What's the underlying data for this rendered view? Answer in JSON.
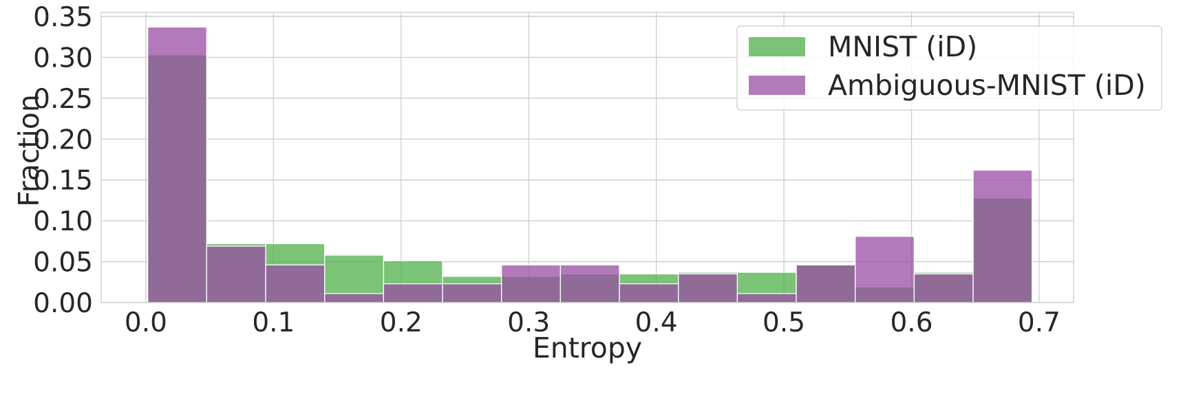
{
  "chart_data": {
    "type": "bar",
    "subtype": "overlapping-histogram",
    "title": "",
    "xlabel": "Entropy",
    "ylabel": "Fraction",
    "xlim": [
      -0.035,
      0.727
    ],
    "ylim": [
      0,
      0.355
    ],
    "grid": true,
    "legend_position": "top-right",
    "bin_edges": [
      0.0015,
      0.0477,
      0.0939,
      0.1401,
      0.1863,
      0.2325,
      0.2787,
      0.3249,
      0.3711,
      0.4173,
      0.4635,
      0.5097,
      0.5559,
      0.6021,
      0.6483,
      0.6945
    ],
    "series": [
      {
        "name": "MNIST (iD)",
        "color": "#4daf4a",
        "values": [
          0.303,
          0.072,
          0.072,
          0.058,
          0.051,
          0.032,
          0.032,
          0.035,
          0.035,
          0.037,
          0.037,
          0.046,
          0.019,
          0.037,
          0.128
        ]
      },
      {
        "name": "Ambiguous-MNIST (iD)",
        "color": "#984ea3",
        "values": [
          0.337,
          0.069,
          0.046,
          0.011,
          0.023,
          0.023,
          0.046,
          0.046,
          0.023,
          0.035,
          0.011,
          0.046,
          0.081,
          0.035,
          0.162
        ]
      }
    ],
    "x_ticks": [
      {
        "value": 0.0,
        "label": "0.0"
      },
      {
        "value": 0.1,
        "label": "0.1"
      },
      {
        "value": 0.2,
        "label": "0.2"
      },
      {
        "value": 0.3,
        "label": "0.3"
      },
      {
        "value": 0.4,
        "label": "0.4"
      },
      {
        "value": 0.5,
        "label": "0.5"
      },
      {
        "value": 0.6,
        "label": "0.6"
      },
      {
        "value": 0.7,
        "label": "0.7"
      }
    ],
    "y_ticks": [
      {
        "value": 0.0,
        "label": "0.00"
      },
      {
        "value": 0.05,
        "label": "0.05"
      },
      {
        "value": 0.1,
        "label": "0.10"
      },
      {
        "value": 0.15,
        "label": "0.15"
      },
      {
        "value": 0.2,
        "label": "0.20"
      },
      {
        "value": 0.25,
        "label": "0.25"
      },
      {
        "value": 0.3,
        "label": "0.30"
      },
      {
        "value": 0.35,
        "label": "0.35"
      }
    ]
  }
}
